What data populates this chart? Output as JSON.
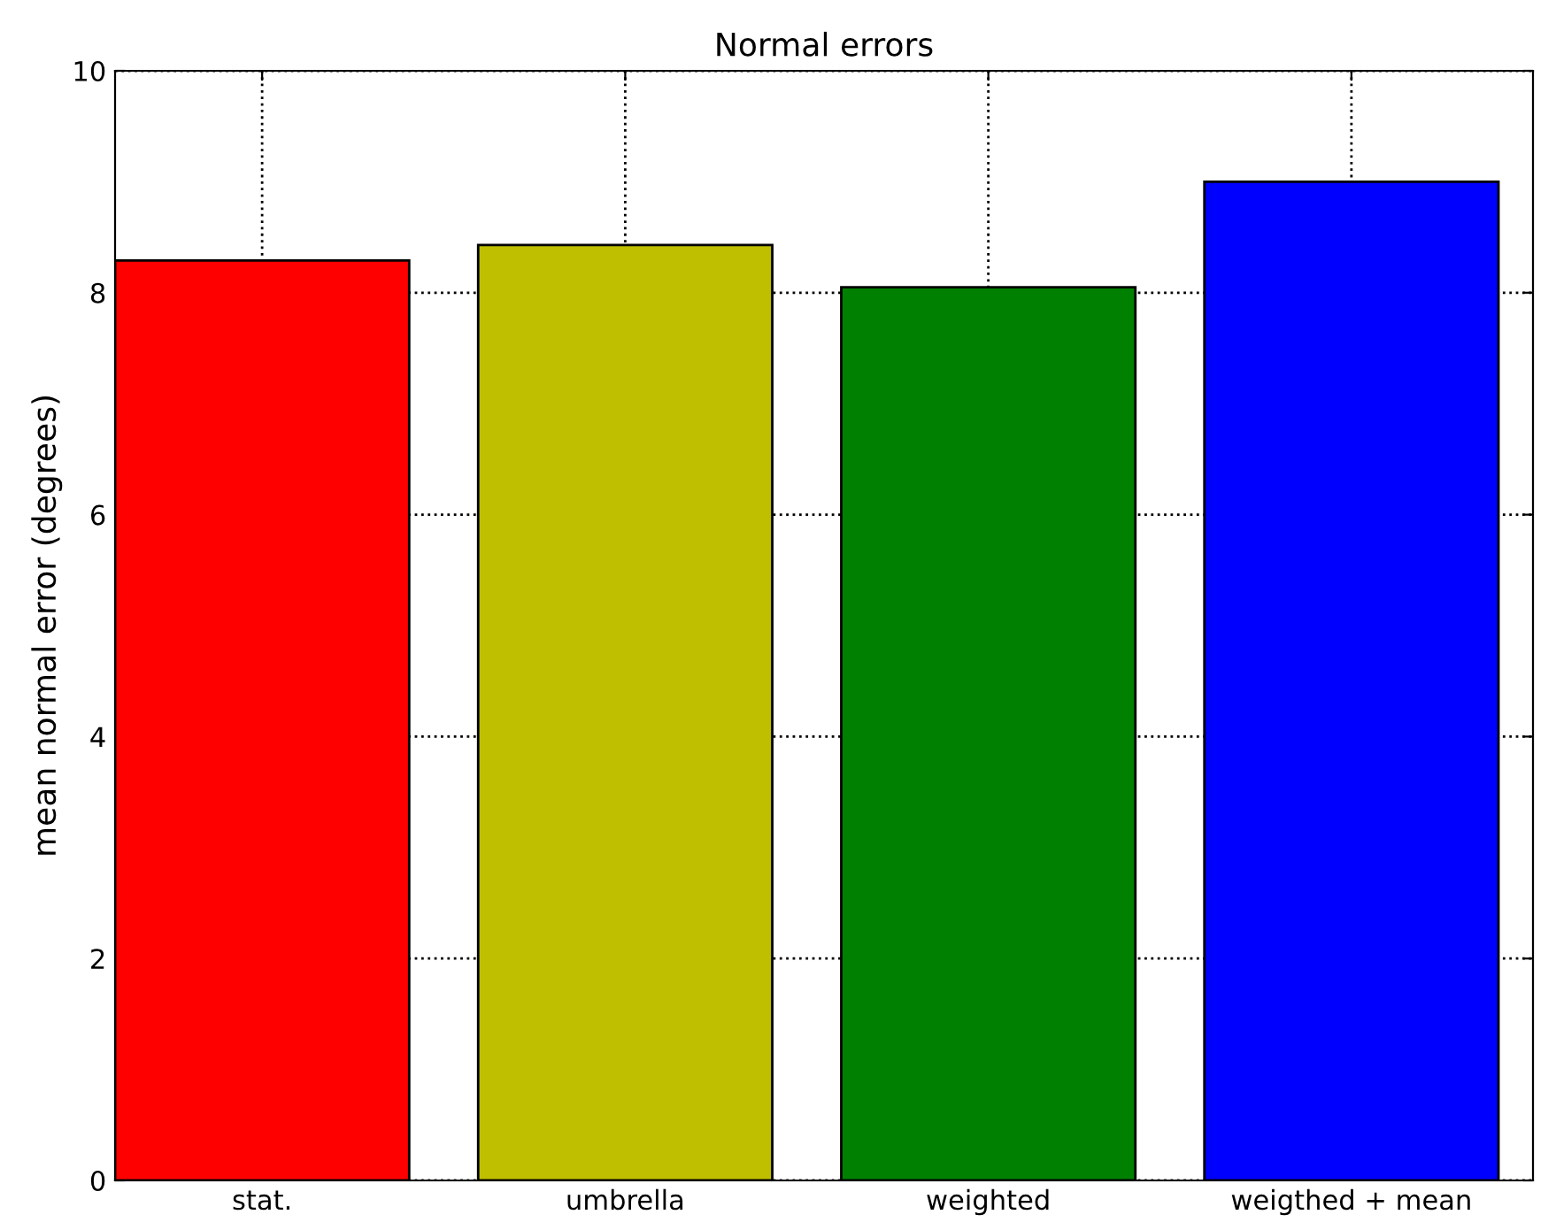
{
  "chart_data": {
    "type": "bar",
    "title": "Normal errors",
    "ylabel": "mean normal error (degrees)",
    "categories": [
      "stat.",
      "umbrella",
      "weighted",
      "weigthed + mean"
    ],
    "values": [
      8.29,
      8.43,
      8.05,
      9.0
    ],
    "colors": [
      "#ff0000",
      "#bfbf00",
      "#008000",
      "#0000ff"
    ],
    "ylim": [
      0,
      10
    ],
    "yticks": [
      0,
      2,
      4,
      6,
      8,
      10
    ],
    "grid": true
  }
}
